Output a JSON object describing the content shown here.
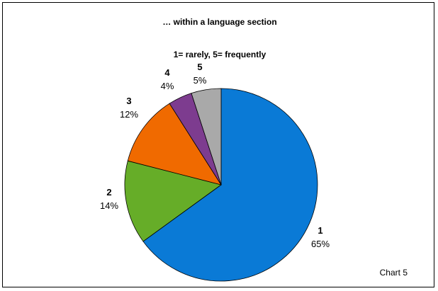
{
  "chart_data": {
    "type": "pie",
    "title": "… within a language section",
    "subtitle": "1= rarely, 5= frequently",
    "note": "Chart 5",
    "slices": [
      {
        "label": "1",
        "value": 65,
        "display": "65%",
        "color": "#0a7ad6"
      },
      {
        "label": "2",
        "value": 14,
        "display": "14%",
        "color": "#66ad28"
      },
      {
        "label": "3",
        "value": 12,
        "display": "12%",
        "color": "#f06a00"
      },
      {
        "label": "4",
        "value": 4,
        "display": "4%",
        "color": "#7d3c8f"
      },
      {
        "label": "5",
        "value": 5,
        "display": "5%",
        "color": "#a9a9a9"
      }
    ]
  }
}
